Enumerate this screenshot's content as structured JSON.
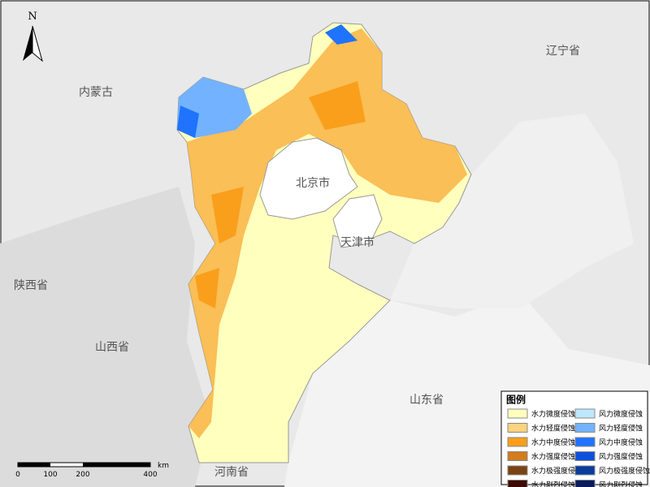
{
  "map": {
    "north": "N",
    "places": [
      "内蒙古",
      "辽宁省",
      "北京市",
      "天津市",
      "陕西省",
      "山西省",
      "山东省",
      "河南省"
    ],
    "scale": {
      "labels": [
        "0",
        "100",
        "200",
        "400"
      ],
      "unit": "km"
    },
    "legend": {
      "title": "图例",
      "items": [
        {
          "label": "水力微度侵蚀",
          "color": "#ffffbe"
        },
        {
          "label": "风力微度侵蚀",
          "color": "#bee8ff"
        },
        {
          "label": "水力轻度侵蚀",
          "color": "#fcd37f"
        },
        {
          "label": "风力轻度侵蚀",
          "color": "#73b2ff"
        },
        {
          "label": "水力中度侵蚀",
          "color": "#f99f1c"
        },
        {
          "label": "风力中度侵蚀",
          "color": "#1f73ff"
        },
        {
          "label": "水力强度侵蚀",
          "color": "#d27d1e"
        },
        {
          "label": "风力强度侵蚀",
          "color": "#0d50dc"
        },
        {
          "label": "水力极强度侵蚀",
          "color": "#7a4315"
        },
        {
          "label": "风力极强度侵蚀",
          "color": "#0a3c9c"
        },
        {
          "label": "水力剧烈侵蚀",
          "color": "#3d0a05"
        },
        {
          "label": "风力剧烈侵蚀",
          "color": "#0a1a5c"
        }
      ]
    }
  }
}
